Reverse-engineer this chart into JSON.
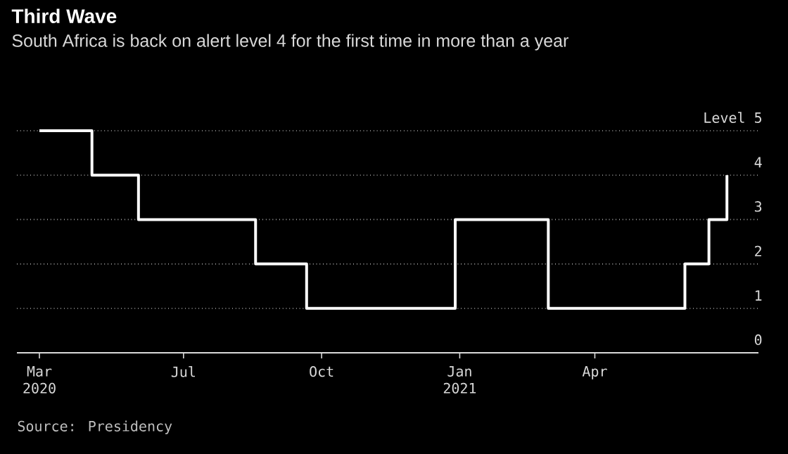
{
  "chart_data": {
    "type": "step",
    "title": "Third Wave",
    "subtitle": "South Africa is back on alert level 4 for the first time in more than a year",
    "x": [
      "2020-03-27",
      "2020-05-01",
      "2020-06-01",
      "2020-08-18",
      "2020-09-21",
      "2020-12-29",
      "2021-03-01",
      "2021-05-31",
      "2021-06-16",
      "2021-06-28"
    ],
    "values": [
      5,
      4,
      3,
      2,
      1,
      3,
      1,
      2,
      3,
      4
    ],
    "color": "#ffffff",
    "xlim": [
      "2020-03-12",
      "2021-07-19"
    ],
    "xticks": [
      {
        "value": "2020-03-27",
        "label": "Mar 2020"
      },
      {
        "value": "2020-07-01",
        "label": "Jul"
      },
      {
        "value": "2020-10-01",
        "label": "Oct"
      },
      {
        "value": "2021-01-01",
        "label": "Jan 2021"
      },
      {
        "value": "2021-04-01",
        "label": "Apr"
      }
    ],
    "ylim": [
      0,
      5
    ],
    "yticks": [
      0,
      1,
      2,
      3,
      4,
      {
        "value": 5,
        "label": "Level 5"
      }
    ],
    "grid": "y",
    "annotations": [
      "Source: Presidency"
    ]
  }
}
